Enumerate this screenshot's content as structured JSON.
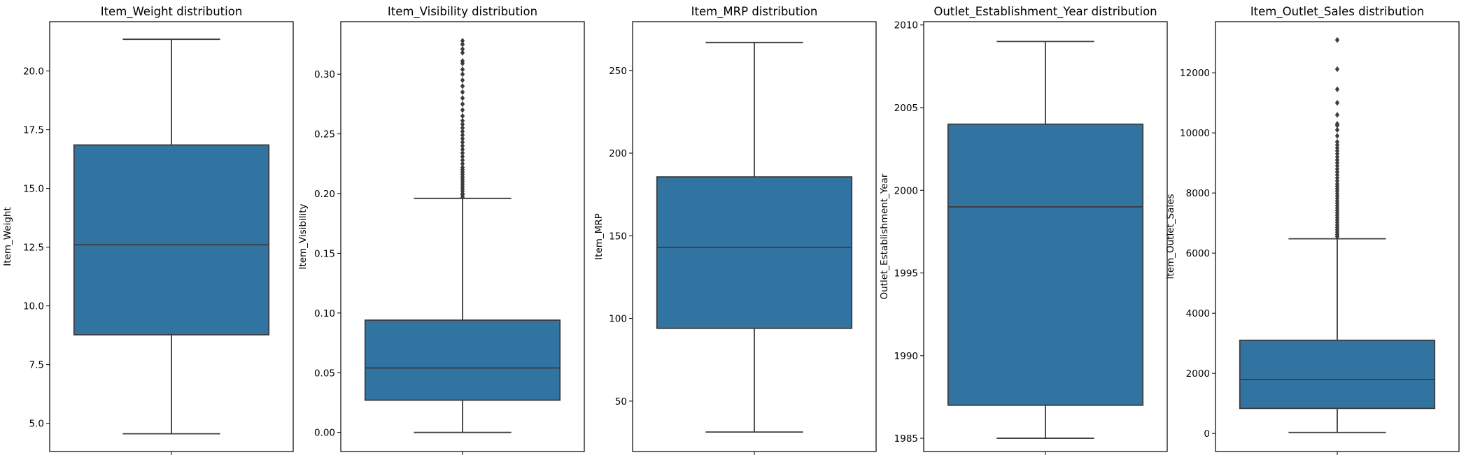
{
  "chart_data": [
    {
      "type": "box",
      "title": "Item_Weight distribution",
      "ylabel": "Item_Weight",
      "ylim": [
        3.8,
        22.1
      ],
      "yticks": [
        5.0,
        7.5,
        10.0,
        12.5,
        15.0,
        17.5,
        20.0
      ],
      "ytick_labels": [
        "5.0",
        "7.5",
        "10.0",
        "12.5",
        "15.0",
        "17.5",
        "20.0"
      ],
      "color": "#3274a1",
      "box": {
        "whisker_low": 4.555,
        "q1": 8.77,
        "median": 12.6,
        "q3": 16.85,
        "whisker_high": 21.35
      },
      "outliers": []
    },
    {
      "type": "box",
      "title": "Item_Visibility distribution",
      "ylabel": "Item_Visibility",
      "ylim": [
        -0.016,
        0.344
      ],
      "yticks": [
        0.0,
        0.05,
        0.1,
        0.15,
        0.2,
        0.25,
        0.3
      ],
      "ytick_labels": [
        "0.00",
        "0.05",
        "0.10",
        "0.15",
        "0.20",
        "0.25",
        "0.30"
      ],
      "color": "#3274a1",
      "box": {
        "whisker_low": 0.0,
        "q1": 0.027,
        "median": 0.054,
        "q3": 0.094,
        "whisker_high": 0.196
      },
      "outliers": [
        0.197,
        0.199,
        0.2,
        0.202,
        0.204,
        0.206,
        0.208,
        0.21,
        0.212,
        0.214,
        0.216,
        0.218,
        0.22,
        0.222,
        0.225,
        0.228,
        0.231,
        0.234,
        0.237,
        0.24,
        0.243,
        0.246,
        0.249,
        0.252,
        0.255,
        0.258,
        0.261,
        0.265,
        0.27,
        0.275,
        0.28,
        0.285,
        0.29,
        0.295,
        0.3,
        0.304,
        0.309,
        0.311,
        0.318,
        0.321,
        0.325,
        0.328
      ]
    },
    {
      "type": "box",
      "title": "Item_MRP distribution",
      "ylabel": "Item_MRP",
      "ylim": [
        19.5,
        279.5
      ],
      "yticks": [
        50,
        100,
        150,
        200,
        250
      ],
      "ytick_labels": [
        "50",
        "100",
        "150",
        "200",
        "250"
      ],
      "color": "#3274a1",
      "box": {
        "whisker_low": 31.3,
        "q1": 94.0,
        "median": 143.0,
        "q3": 185.6,
        "whisker_high": 266.9
      },
      "outliers": []
    },
    {
      "type": "box",
      "title": "Outlet_Establishment_Year distribution",
      "ylabel": "Outlet_Establishment_Year",
      "ylim": [
        1984.2,
        2010.2
      ],
      "yticks": [
        1985,
        1990,
        1995,
        2000,
        2005,
        2010
      ],
      "ytick_labels": [
        "1985",
        "1990",
        "1995",
        "2000",
        "2005",
        "2010"
      ],
      "color": "#3274a1",
      "box": {
        "whisker_low": 1985,
        "q1": 1987,
        "median": 1999,
        "q3": 2004,
        "whisker_high": 2009
      },
      "outliers": []
    },
    {
      "type": "box",
      "title": "Item_Outlet_Sales distribution",
      "ylabel": "Item_Outlet_Sales",
      "ylim": [
        -600,
        13700
      ],
      "yticks": [
        0,
        2000,
        4000,
        6000,
        8000,
        10000,
        12000
      ],
      "ytick_labels": [
        "0",
        "2000",
        "4000",
        "6000",
        "8000",
        "10000",
        "12000"
      ],
      "color": "#3274a1",
      "box": {
        "whisker_low": 33,
        "q1": 834,
        "median": 1794,
        "q3": 3101,
        "whisker_high": 6478
      },
      "outliers": [
        6550,
        6620,
        6700,
        6780,
        6860,
        6940,
        7020,
        7100,
        7180,
        7260,
        7340,
        7420,
        7500,
        7580,
        7660,
        7740,
        7820,
        7900,
        7980,
        8060,
        8140,
        8220,
        8300,
        8400,
        8500,
        8600,
        8700,
        8800,
        8900,
        9000,
        9100,
        9200,
        9300,
        9400,
        9500,
        9600,
        9700,
        9900,
        10100,
        10250,
        10300,
        10600,
        11000,
        11450,
        12120,
        13090
      ]
    }
  ]
}
